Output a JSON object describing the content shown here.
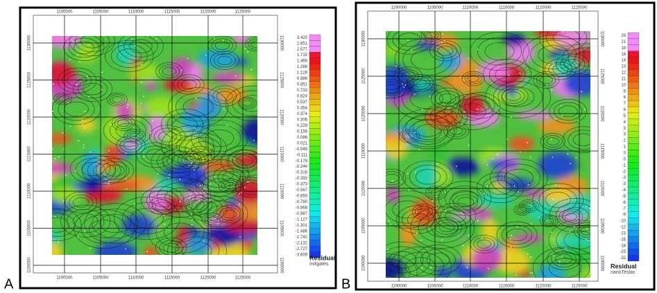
{
  "panels": [
    {
      "label": "A",
      "x_ticks": [
        "1100000",
        "1105000",
        "1110000",
        "1115000",
        "1120000",
        "1125000"
      ],
      "y_ticks": [
        "1130000",
        "1125000",
        "1120000",
        "1115000",
        "1110000",
        "1105000",
        "1100000"
      ],
      "colorbar": {
        "labels": [
          "3.420",
          "2.651",
          "2.077",
          "1.715",
          "1.466",
          "1.288",
          "1.128",
          "0.986",
          "0.851",
          "0.733",
          "0.624",
          "0.537",
          "0.454",
          "0.374",
          "0.306",
          "0.229",
          "0.156",
          "0.086",
          "0.021",
          "-0.045",
          "-0.111",
          "-0.179",
          "-0.244",
          "-0.316",
          "-0.393",
          "-0.473",
          "-0.567",
          "-0.650",
          "-0.780",
          "-0.868",
          "-0.987",
          "-1.127",
          "-1.301",
          "-1.486",
          "-1.742",
          "-2.132",
          "-2.727",
          "-3.609"
        ],
        "title": "Residual",
        "unit": "miligales"
      }
    },
    {
      "label": "B",
      "x_ticks": [
        "1100000",
        "1105000",
        "1110000",
        "1115000",
        "1120000",
        "1125000"
      ],
      "y_ticks": [
        "1130000",
        "1125000",
        "1120000",
        "1115000",
        "1110000",
        "1105000",
        "1100000"
      ],
      "colorbar": {
        "labels": [
          "29",
          "21",
          "18",
          "16",
          "14",
          "13",
          "12",
          "11",
          "10",
          "9",
          "8",
          "7",
          "6",
          "5",
          "4",
          "3",
          "3",
          "2",
          "1",
          "0",
          "0",
          "-1",
          "-2",
          "-3",
          "-3",
          "-4",
          "-5",
          "-6",
          "-7",
          "-9",
          "-10",
          "-12",
          "-13",
          "-16",
          "-18",
          "-23",
          "-32"
        ],
        "title": "Residual",
        "unit": "nanoTeslas"
      }
    }
  ]
}
